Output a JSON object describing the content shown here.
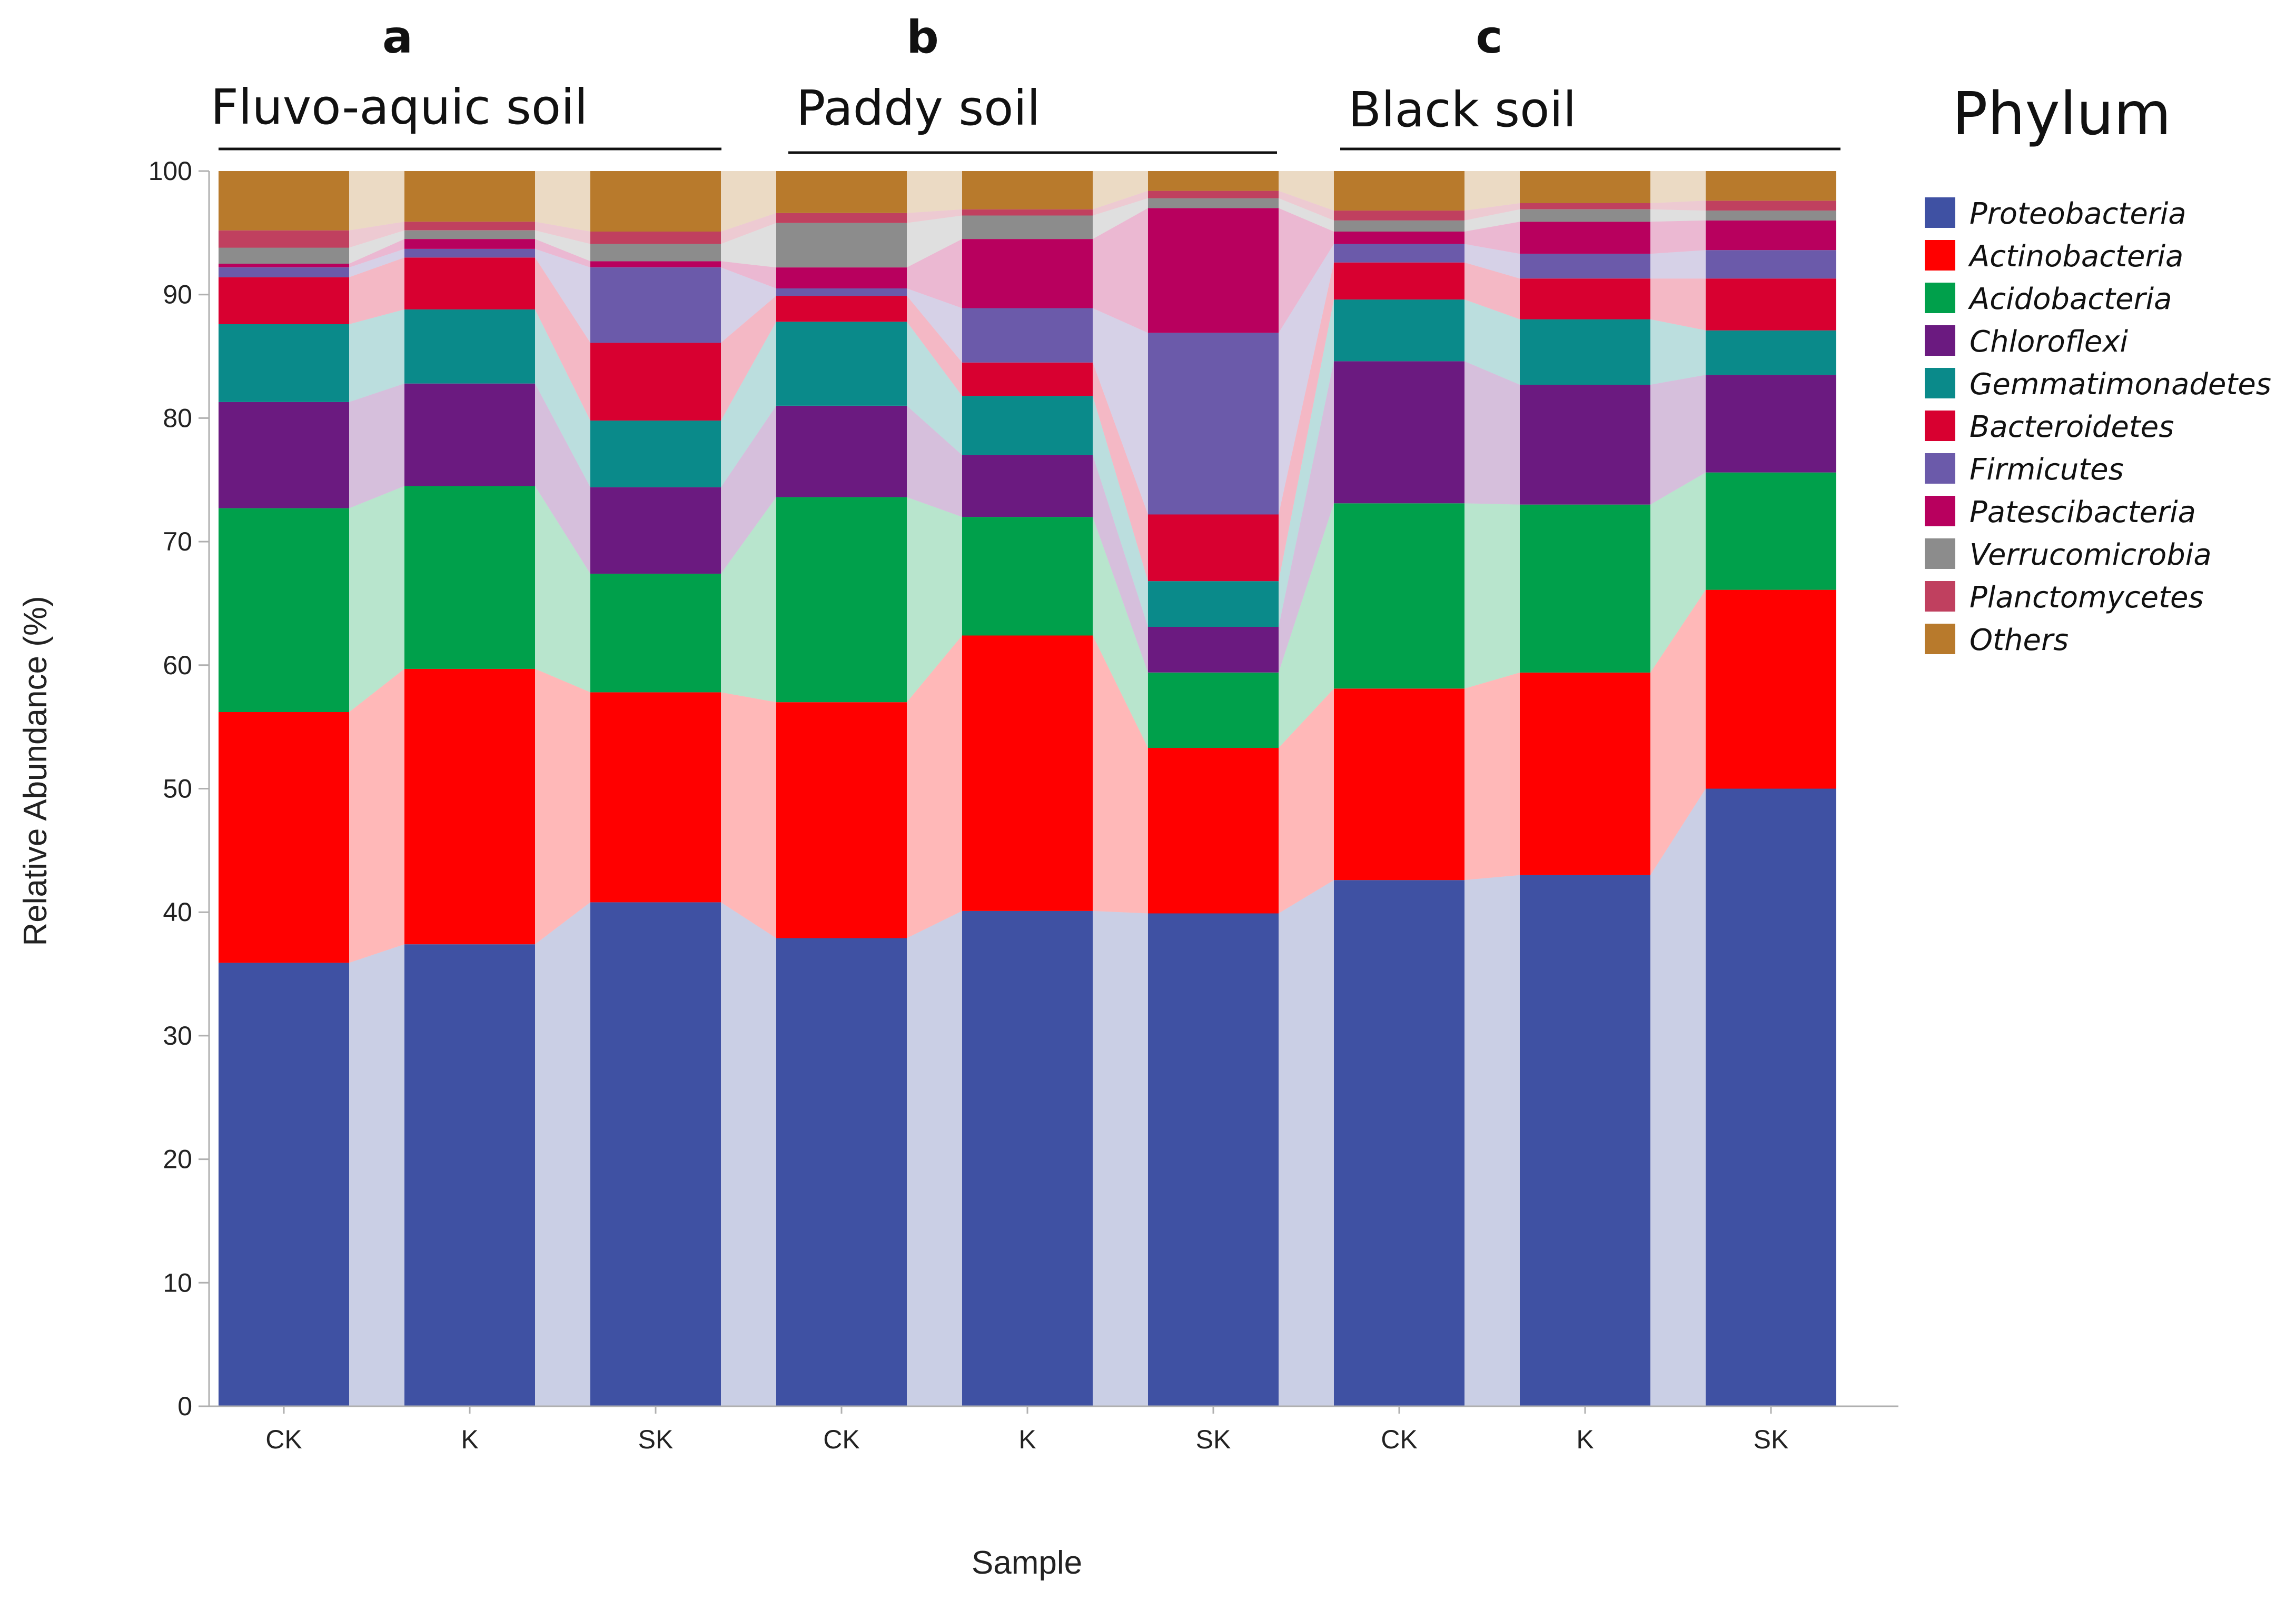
{
  "chart_data": {
    "type": "stacked-bar",
    "xlabel": "Sample",
    "ylabel": "Relative Abundance (%)",
    "ylim": [
      0,
      100
    ],
    "yticks": [
      0,
      10,
      20,
      30,
      40,
      50,
      60,
      70,
      80,
      90,
      100
    ],
    "legend_title": "Phylum",
    "groups": [
      {
        "letter": "a",
        "title": "Fluvo-aquic soil",
        "categories": [
          "CK",
          "K",
          "SK"
        ]
      },
      {
        "letter": "b",
        "title": "Paddy soil",
        "categories": [
          "CK",
          "K",
          "SK"
        ]
      },
      {
        "letter": "c",
        "title": "Black soil",
        "categories": [
          "CK",
          "K",
          "SK"
        ]
      }
    ],
    "categories": [
      "CK",
      "K",
      "SK",
      "CK",
      "K",
      "SK",
      "CK",
      "K",
      "SK"
    ],
    "series": [
      {
        "name": "Proteobacteria",
        "color": "#3f51a3",
        "values": [
          35.9,
          37.4,
          40.8,
          37.9,
          40.1,
          39.9,
          42.6,
          43.0,
          50.0
        ]
      },
      {
        "name": "Actinobacteria",
        "color": "#ff0000",
        "values": [
          20.3,
          22.3,
          17.0,
          19.1,
          22.3,
          13.4,
          15.5,
          16.4,
          16.1
        ]
      },
      {
        "name": "Acidobacteria",
        "color": "#00a04b",
        "values": [
          16.5,
          14.8,
          9.6,
          16.6,
          9.6,
          6.1,
          15.0,
          13.6,
          9.5
        ]
      },
      {
        "name": "Chloroflexi",
        "color": "#6b1a80",
        "values": [
          8.6,
          8.3,
          7.0,
          7.4,
          5.0,
          3.7,
          11.5,
          9.7,
          7.9
        ]
      },
      {
        "name": "Gemmatimonadetes",
        "color": "#0a8a8a",
        "values": [
          6.3,
          6.0,
          5.4,
          6.8,
          4.8,
          3.7,
          5.0,
          5.3,
          3.6
        ]
      },
      {
        "name": "Bacteroidetes",
        "color": "#d80030",
        "values": [
          3.8,
          4.2,
          6.3,
          2.1,
          2.7,
          5.4,
          3.0,
          3.3,
          4.2
        ]
      },
      {
        "name": "Firmicutes",
        "color": "#6b5aaa",
        "values": [
          0.8,
          0.7,
          6.1,
          0.6,
          4.4,
          14.7,
          1.5,
          2.0,
          2.3
        ]
      },
      {
        "name": "Patescibacteria",
        "color": "#b8005e",
        "values": [
          0.3,
          0.8,
          0.5,
          1.7,
          5.6,
          10.1,
          1.0,
          2.6,
          2.4
        ]
      },
      {
        "name": "Verrucomicrobia",
        "color": "#8c8c8c",
        "values": [
          1.3,
          0.7,
          1.4,
          3.6,
          1.9,
          0.8,
          0.9,
          1.0,
          0.8
        ]
      },
      {
        "name": "Planctomycetes",
        "color": "#c0405f",
        "values": [
          1.4,
          0.7,
          1.0,
          0.8,
          0.5,
          0.6,
          0.8,
          0.5,
          0.8
        ]
      },
      {
        "name": "Others",
        "color": "#b87a2c",
        "values": [
          4.8,
          4.1,
          4.9,
          3.4,
          3.1,
          1.6,
          3.2,
          2.6,
          2.4
        ]
      }
    ]
  }
}
